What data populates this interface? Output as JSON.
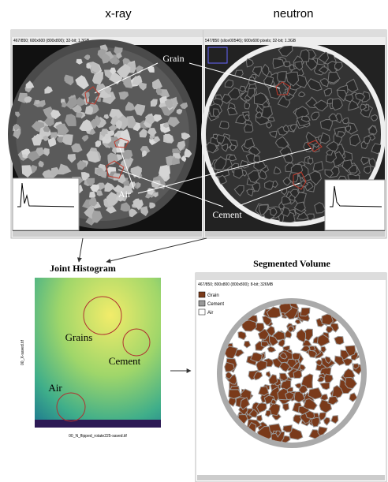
{
  "header": {
    "xray": "x-ray",
    "neutron": "neutron"
  },
  "xray_window": {
    "info": "467/850; 600x600 (800x800); 32-bit; 1.3GB"
  },
  "neutron_window": {
    "info": "547/850 (slice00546); 600x600 pixels; 32-bit; 1.3GB"
  },
  "annotations": {
    "grain": "Grain",
    "air": "Air",
    "cement": "Cement"
  },
  "joint_histogram": {
    "title": "Joint Histogram",
    "regions": [
      "Grains",
      "Cement",
      "Air"
    ],
    "x_label": "00_N_flipped_rotate225-saved.tif",
    "y_label": "00_X-saved.tif"
  },
  "segmented_volume": {
    "title": "Segmented Volume",
    "info": "467/850; 800x800 (800x800); 8-bit; 326MB",
    "legend": [
      "Grain",
      "Cement",
      "Air"
    ]
  }
}
